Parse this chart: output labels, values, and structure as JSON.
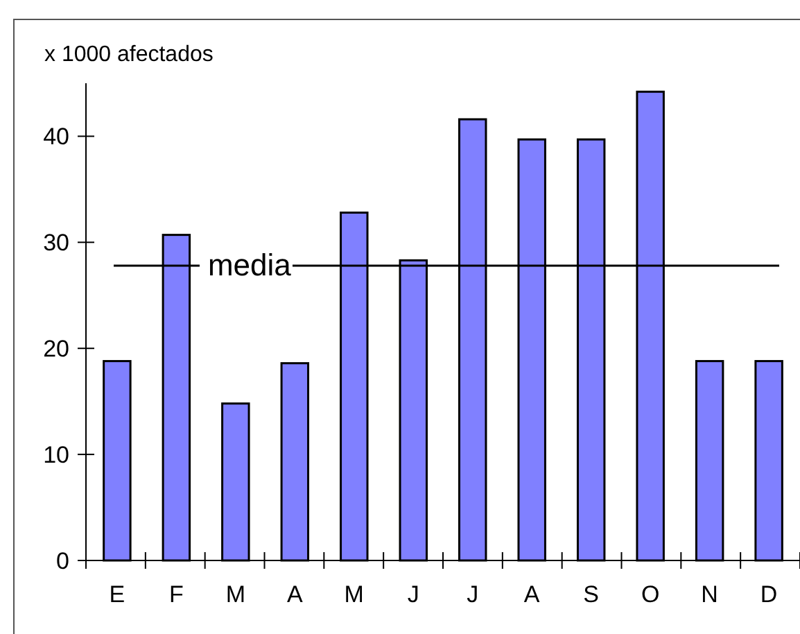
{
  "chart_data": {
    "type": "bar",
    "ylabel": "x 1000 afectados",
    "categories": [
      "E",
      "F",
      "M",
      "A",
      "M",
      "J",
      "J",
      "A",
      "S",
      "O",
      "N",
      "D"
    ],
    "values": [
      18.8,
      30.7,
      14.8,
      18.6,
      32.8,
      28.3,
      41.6,
      39.7,
      39.7,
      44.2,
      18.8,
      18.8
    ],
    "color": "#8080ff",
    "ylim": [
      0,
      45
    ],
    "yticks": [
      0,
      10,
      20,
      30,
      40
    ],
    "grid": false,
    "ref_lines": [
      {
        "axis": "y",
        "value": 27.8,
        "label": "media",
        "color": "#000000"
      }
    ]
  }
}
